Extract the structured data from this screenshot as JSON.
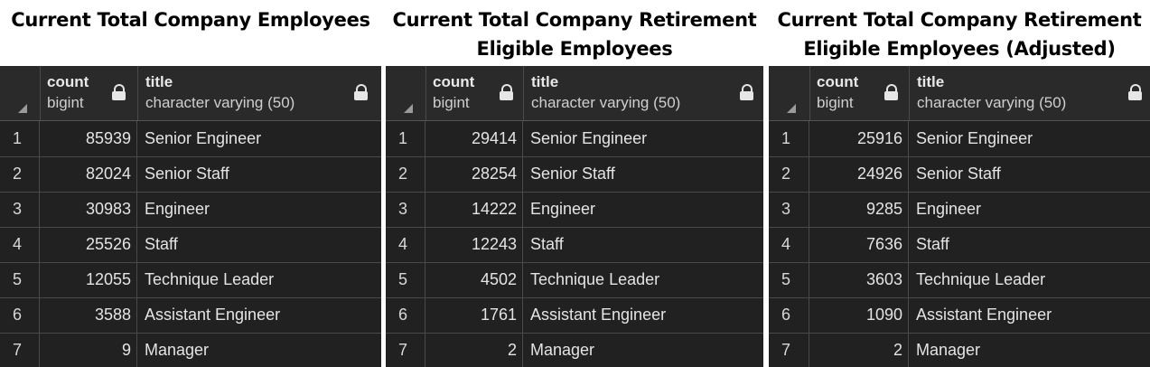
{
  "panels": [
    {
      "title": "Current Total Company Employees",
      "columns": {
        "count": {
          "name": "count",
          "type": "bigint"
        },
        "title": {
          "name": "title",
          "type": "character varying (50)"
        }
      },
      "rows": [
        {
          "idx": "1",
          "count": "85939",
          "title": "Senior Engineer"
        },
        {
          "idx": "2",
          "count": "82024",
          "title": "Senior Staff"
        },
        {
          "idx": "3",
          "count": "30983",
          "title": "Engineer"
        },
        {
          "idx": "4",
          "count": "25526",
          "title": "Staff"
        },
        {
          "idx": "5",
          "count": "12055",
          "title": "Technique Leader"
        },
        {
          "idx": "6",
          "count": "3588",
          "title": "Assistant Engineer"
        },
        {
          "idx": "7",
          "count": "9",
          "title": "Manager"
        }
      ]
    },
    {
      "title": "Current Total Company Retirement Eligible Employees",
      "columns": {
        "count": {
          "name": "count",
          "type": "bigint"
        },
        "title": {
          "name": "title",
          "type": "character varying (50)"
        }
      },
      "rows": [
        {
          "idx": "1",
          "count": "29414",
          "title": "Senior Engineer"
        },
        {
          "idx": "2",
          "count": "28254",
          "title": "Senior Staff"
        },
        {
          "idx": "3",
          "count": "14222",
          "title": "Engineer"
        },
        {
          "idx": "4",
          "count": "12243",
          "title": "Staff"
        },
        {
          "idx": "5",
          "count": "4502",
          "title": "Technique Leader"
        },
        {
          "idx": "6",
          "count": "1761",
          "title": "Assistant Engineer"
        },
        {
          "idx": "7",
          "count": "2",
          "title": "Manager"
        }
      ]
    },
    {
      "title": "Current Total Company Retirement Eligible Employees (Adjusted)",
      "columns": {
        "count": {
          "name": "count",
          "type": "bigint"
        },
        "title": {
          "name": "title",
          "type": "character varying (50)"
        }
      },
      "rows": [
        {
          "idx": "1",
          "count": "25916",
          "title": "Senior Engineer"
        },
        {
          "idx": "2",
          "count": "24926",
          "title": "Senior Staff"
        },
        {
          "idx": "3",
          "count": "9285",
          "title": "Engineer"
        },
        {
          "idx": "4",
          "count": "7636",
          "title": "Staff"
        },
        {
          "idx": "5",
          "count": "3603",
          "title": "Technique Leader"
        },
        {
          "idx": "6",
          "count": "1090",
          "title": "Assistant Engineer"
        },
        {
          "idx": "7",
          "count": "2",
          "title": "Manager"
        }
      ]
    }
  ]
}
